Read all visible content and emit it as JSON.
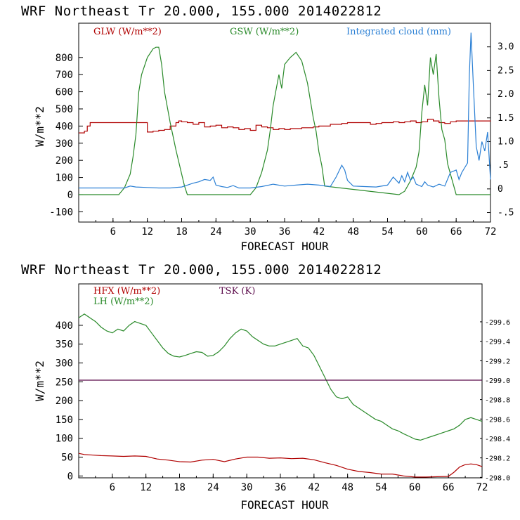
{
  "chart_data": [
    {
      "type": "line",
      "title": "WRF  Northeast Tr  20.000, 155.000  2014022812",
      "xlabel": "FORECAST HOUR",
      "ylabel": "W/m**2",
      "xlim": [
        0,
        72
      ],
      "ylim": [
        -160,
        1000
      ],
      "xticks": [
        "6",
        "12",
        "18",
        "24",
        "30",
        "36",
        "42",
        "48",
        "54",
        "60",
        "66",
        "72"
      ],
      "yticks": [
        "-100",
        "0",
        "100",
        "200",
        "300",
        "400",
        "500",
        "600",
        "700",
        "800"
      ],
      "y2lim": [
        -0.7,
        3.5
      ],
      "y2ticks": [
        "-.5",
        "0",
        ".5",
        "1.0",
        "1.5",
        "2.0",
        "2.5",
        "3.0"
      ],
      "legend_placement": "top",
      "series": [
        {
          "name": "GLW (W/m**2)",
          "color": "#b00000",
          "axis": "left",
          "x": [
            0,
            1,
            1.5,
            2,
            3,
            4,
            5,
            6,
            7,
            8,
            9,
            10,
            11,
            12,
            13,
            14,
            15,
            16,
            17,
            17.5,
            18,
            19,
            20,
            21,
            22,
            23,
            24,
            25,
            26,
            27,
            28,
            29,
            30,
            31,
            32,
            33,
            34,
            35,
            36,
            37,
            38,
            39,
            40,
            41,
            42,
            43,
            44,
            45,
            46,
            47,
            48,
            49,
            50,
            51,
            52,
            53,
            54,
            55,
            56,
            57,
            58,
            59,
            60,
            61,
            62,
            63,
            64,
            65,
            66,
            67,
            68,
            69,
            70,
            71,
            72
          ],
          "y": [
            360,
            370,
            400,
            420,
            420,
            420,
            420,
            420,
            420,
            420,
            420,
            420,
            420,
            365,
            370,
            375,
            380,
            400,
            420,
            430,
            425,
            420,
            410,
            420,
            395,
            400,
            405,
            390,
            395,
            390,
            380,
            385,
            375,
            405,
            395,
            390,
            380,
            385,
            380,
            385,
            385,
            390,
            390,
            395,
            400,
            400,
            410,
            410,
            415,
            420,
            420,
            420,
            420,
            410,
            415,
            420,
            420,
            425,
            420,
            425,
            430,
            420,
            425,
            440,
            430,
            420,
            415,
            425,
            430,
            430,
            430,
            430,
            430,
            430,
            432
          ]
        },
        {
          "name": "GSW (W/m**2)",
          "color": "#2a8a2a",
          "axis": "left",
          "x": [
            0,
            7,
            8,
            9,
            9.5,
            10,
            10.5,
            11,
            12,
            13,
            13.5,
            14,
            14.5,
            15,
            16,
            17,
            18,
            18.5,
            19,
            30,
            31,
            32,
            33,
            33.5,
            34,
            35,
            35.5,
            36,
            37,
            38,
            39,
            40,
            41,
            41.5,
            42,
            42.5,
            43,
            56,
            57,
            58,
            59,
            59.5,
            60,
            60.5,
            61,
            61.5,
            62,
            62.5,
            63,
            63.5,
            64,
            64.5,
            65,
            65.5,
            66,
            72
          ],
          "y": [
            0,
            0,
            40,
            120,
            220,
            350,
            600,
            700,
            800,
            850,
            860,
            860,
            760,
            600,
            420,
            260,
            120,
            50,
            0,
            0,
            40,
            130,
            260,
            380,
            520,
            700,
            620,
            760,
            800,
            830,
            780,
            650,
            450,
            370,
            250,
            170,
            50,
            0,
            20,
            80,
            160,
            250,
            480,
            640,
            520,
            800,
            700,
            820,
            560,
            380,
            320,
            180,
            120,
            60,
            0,
            0
          ]
        },
        {
          "name": "Integrated cloud (mm)",
          "color": "#2a7fd4",
          "axis": "right",
          "x": [
            0,
            8,
            9,
            10,
            12,
            14,
            16,
            18,
            19,
            20,
            21,
            22,
            23,
            23.5,
            24,
            25,
            26,
            27,
            28,
            30,
            32,
            34,
            36,
            38,
            40,
            42,
            44,
            45,
            46,
            46.5,
            47,
            48,
            50,
            52,
            54,
            55,
            56,
            56.5,
            57,
            57.5,
            58,
            58.5,
            59,
            60,
            60.5,
            61,
            62,
            63,
            64,
            65,
            66,
            66.5,
            67,
            67.5,
            68,
            68.3,
            68.6,
            69,
            69.5,
            70,
            70.5,
            71,
            71.5,
            72
          ],
          "y": [
            0.02,
            0.02,
            0.06,
            0.04,
            0.03,
            0.02,
            0.02,
            0.04,
            0.08,
            0.12,
            0.15,
            0.2,
            0.18,
            0.25,
            0.08,
            0.05,
            0.03,
            0.07,
            0.02,
            0.02,
            0.05,
            0.1,
            0.06,
            0.08,
            0.1,
            0.08,
            0.05,
            0.25,
            0.5,
            0.4,
            0.18,
            0.06,
            0.05,
            0.04,
            0.08,
            0.25,
            0.12,
            0.28,
            0.15,
            0.35,
            0.18,
            0.25,
            0.1,
            0.05,
            0.15,
            0.08,
            0.04,
            0.1,
            0.06,
            0.35,
            0.4,
            0.2,
            0.35,
            0.45,
            0.55,
            2.4,
            3.3,
            2.2,
            0.9,
            0.6,
            1.0,
            0.8,
            1.2,
            0.2
          ]
        }
      ]
    },
    {
      "type": "line",
      "title": "WRF  Northeast Tr  20.000, 155.000  2014022812",
      "xlabel": "FORECAST HOUR",
      "ylabel": "W/m**2",
      "xlim": [
        0,
        72
      ],
      "ylim": [
        -5,
        510
      ],
      "xticks": [
        "6",
        "12",
        "18",
        "24",
        "30",
        "36",
        "42",
        "48",
        "54",
        "60",
        "66",
        "72"
      ],
      "yticks": [
        "0",
        "50",
        "100",
        "150",
        "200",
        "250",
        "300",
        "350",
        "400"
      ],
      "y2lim": [
        297.995,
        299.99
      ],
      "y2ticks": [
        "298.0",
        "298.2",
        "298.4",
        "298.6",
        "298.8",
        "299.0",
        "299.2",
        "299.4",
        "299.6"
      ],
      "legend_placement": "top-left",
      "series": [
        {
          "name": "HFX (W/m**2)",
          "color": "#b00000",
          "axis": "left",
          "x": [
            0,
            1,
            2,
            4,
            6,
            8,
            10,
            12,
            14,
            16,
            18,
            20,
            22,
            24,
            26,
            28,
            30,
            32,
            34,
            36,
            38,
            40,
            42,
            44,
            46,
            48,
            50,
            52,
            54,
            56,
            58,
            60,
            62,
            64,
            66,
            67,
            68,
            69,
            70,
            71,
            72
          ],
          "y": [
            60,
            57,
            56,
            54,
            53,
            52,
            53,
            52,
            45,
            42,
            38,
            37,
            42,
            44,
            38,
            45,
            50,
            50,
            47,
            48,
            46,
            47,
            43,
            35,
            28,
            18,
            12,
            9,
            5,
            5,
            0,
            -3,
            -3,
            -2,
            -1,
            10,
            24,
            30,
            32,
            30,
            25
          ]
        },
        {
          "name": "LH  (W/m**2)",
          "color": "#2a8a2a",
          "axis": "left",
          "x": [
            0,
            1,
            2,
            3,
            4,
            5,
            6,
            7,
            8,
            9,
            10,
            11,
            12,
            13,
            14,
            15,
            16,
            17,
            18,
            19,
            20,
            21,
            22,
            23,
            24,
            25,
            26,
            27,
            28,
            29,
            30,
            31,
            32,
            33,
            34,
            35,
            36,
            37,
            38,
            39,
            40,
            41,
            42,
            43,
            44,
            45,
            46,
            47,
            48,
            49,
            50,
            51,
            52,
            53,
            54,
            55,
            56,
            57,
            58,
            59,
            60,
            61,
            62,
            63,
            64,
            65,
            66,
            67,
            68,
            69,
            70,
            71,
            72
          ],
          "y": [
            420,
            430,
            420,
            410,
            395,
            385,
            380,
            390,
            385,
            400,
            410,
            405,
            400,
            380,
            360,
            340,
            325,
            318,
            316,
            320,
            325,
            330,
            328,
            318,
            320,
            330,
            345,
            365,
            380,
            390,
            385,
            370,
            360,
            350,
            345,
            345,
            350,
            355,
            360,
            365,
            345,
            340,
            320,
            290,
            260,
            230,
            210,
            205,
            210,
            190,
            180,
            170,
            160,
            150,
            145,
            135,
            125,
            120,
            112,
            105,
            98,
            95,
            100,
            105,
            110,
            115,
            120,
            125,
            135,
            150,
            155,
            150,
            145
          ]
        },
        {
          "name": "TSK (K)",
          "color": "#5a0a4a",
          "axis": "right",
          "x": [
            0,
            72
          ],
          "y": [
            299.0,
            299.0
          ]
        }
      ]
    }
  ]
}
